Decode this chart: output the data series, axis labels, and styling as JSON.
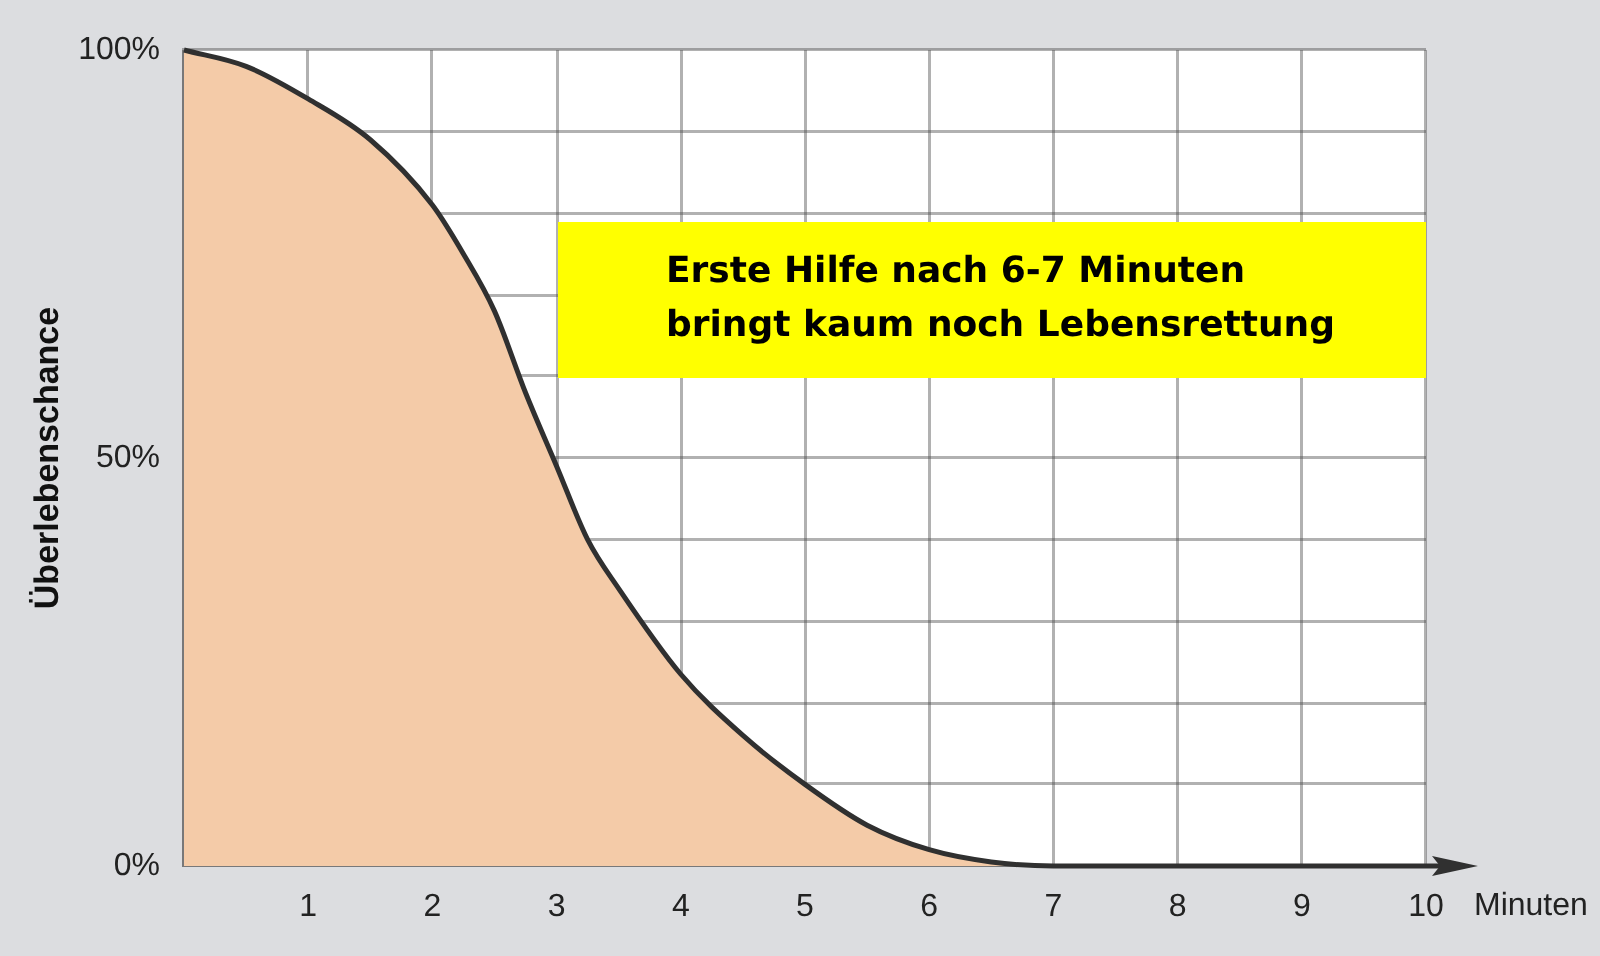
{
  "chart_data": {
    "type": "area",
    "xlabel": "Minuten",
    "ylabel": "Überlebenschance",
    "annotations": [
      "Erste Hilfe nach 6-7 Minuten\nbringt kaum noch Lebensrettung"
    ],
    "x": [
      0,
      0.5,
      1,
      1.5,
      2,
      2.25,
      2.5,
      2.75,
      3,
      3.25,
      3.5,
      4,
      4.5,
      5,
      5.5,
      6,
      6.5,
      7,
      8,
      9,
      10
    ],
    "series": [
      {
        "color": "#f4cba8",
        "values": [
          100,
          98,
          94,
          89,
          81,
          75,
          68,
          58,
          49,
          40,
          34,
          23.5,
          16,
          10,
          5,
          2,
          0.5,
          0,
          0,
          0,
          0
        ]
      }
    ],
    "xlim": [
      0,
      10
    ],
    "xticks": [
      {
        "value": 0,
        "label": null
      },
      1,
      2,
      3,
      4,
      5,
      6,
      7,
      8,
      9,
      10
    ],
    "ylim": [
      0,
      100
    ],
    "yticks": [
      {
        "value": 0,
        "label": "0%"
      },
      {
        "value": 10,
        "label": null
      },
      {
        "value": 20,
        "label": null
      },
      {
        "value": 30,
        "label": null
      },
      {
        "value": 40,
        "label": null
      },
      {
        "value": 50,
        "label": "50%"
      },
      {
        "value": 60,
        "label": null
      },
      {
        "value": 70,
        "label": null
      },
      {
        "value": 80,
        "label": null
      },
      {
        "value": 90,
        "label": null
      },
      {
        "value": 100,
        "label": "100%"
      }
    ],
    "grid": true
  }
}
